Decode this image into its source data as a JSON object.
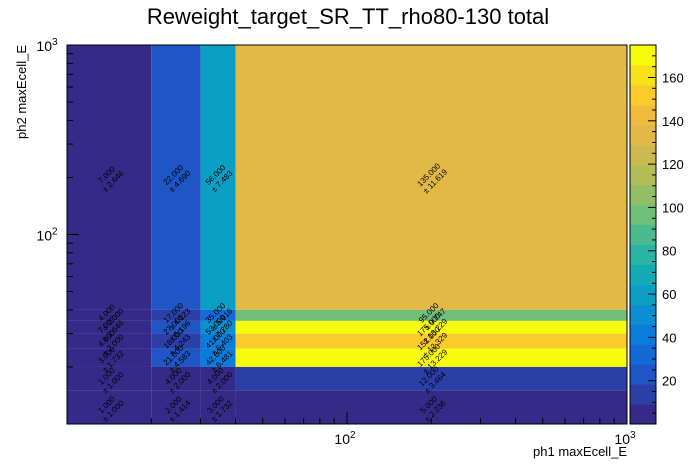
{
  "chart_data": {
    "type": "heatmap",
    "title": "Reweight_target_SR_TT_rho80-130 total",
    "xlabel": "ph1 maxEcell_E",
    "ylabel": "ph2 maxEcell_E",
    "x_scale": "log",
    "y_scale": "log",
    "xlim": [
      10,
      1000
    ],
    "ylim": [
      10,
      1000
    ],
    "x_edges": [
      10,
      20,
      30,
      40,
      1000
    ],
    "y_edges": [
      10,
      15,
      20,
      25,
      30,
      35,
      40,
      1000
    ],
    "x_tick_labels": [
      "10^2",
      "10^3"
    ],
    "y_tick_labels": [
      "10^2",
      "10^3"
    ],
    "z_range": [
      0,
      175
    ],
    "colorbar_ticks": [
      20,
      40,
      60,
      80,
      100,
      120,
      140,
      160
    ],
    "cells": [
      {
        "ix": 0,
        "iy": 6,
        "value": "7.000",
        "error": "± 2.646"
      },
      {
        "ix": 1,
        "iy": 6,
        "value": "22.000",
        "error": "± 4.690"
      },
      {
        "ix": 2,
        "iy": 6,
        "value": "56.000",
        "error": "± 7.483"
      },
      {
        "ix": 3,
        "iy": 6,
        "value": "135.000",
        "error": "± 11.619"
      },
      {
        "ix": 0,
        "iy": 5,
        "value": "4.000",
        "error": "± 2.000"
      },
      {
        "ix": 1,
        "iy": 5,
        "value": "17.000",
        "error": "± 4.123"
      },
      {
        "ix": 2,
        "iy": 5,
        "value": "35.000",
        "error": "± 5.916"
      },
      {
        "ix": 3,
        "iy": 5,
        "value": "95.000",
        "error": "± 9.747"
      },
      {
        "ix": 0,
        "iy": 4,
        "value": "7.000",
        "error": "± 2.646"
      },
      {
        "ix": 1,
        "iy": 4,
        "value": "27.000",
        "error": "± 5.196"
      },
      {
        "ix": 2,
        "iy": 4,
        "value": "53.000",
        "error": "± 7.280"
      },
      {
        "ix": 3,
        "iy": 4,
        "value": "175.000",
        "error": "± 13.229"
      },
      {
        "ix": 0,
        "iy": 3,
        "value": "4.000",
        "error": "± 2.000"
      },
      {
        "ix": 1,
        "iy": 3,
        "value": "18.000",
        "error": "± 4.243"
      },
      {
        "ix": 2,
        "iy": 3,
        "value": "41.000",
        "error": "± 6.403"
      },
      {
        "ix": 3,
        "iy": 3,
        "value": "152.000",
        "error": "± 12.329"
      },
      {
        "ix": 0,
        "iy": 2,
        "value": "3.000",
        "error": "± 1.732"
      },
      {
        "ix": 1,
        "iy": 2,
        "value": "21.000",
        "error": "± 4.583"
      },
      {
        "ix": 2,
        "iy": 2,
        "value": "42.000",
        "error": "± 6.481"
      },
      {
        "ix": 3,
        "iy": 2,
        "value": "175.000",
        "error": "± 13.229"
      },
      {
        "ix": 0,
        "iy": 1,
        "value": "1.000",
        "error": "± 1.000"
      },
      {
        "ix": 1,
        "iy": 1,
        "value": "4.000",
        "error": "± 2.000"
      },
      {
        "ix": 2,
        "iy": 1,
        "value": "4.000",
        "error": "± 2.000"
      },
      {
        "ix": 3,
        "iy": 1,
        "value": "12.000",
        "error": "± 3.464"
      },
      {
        "ix": 0,
        "iy": 0,
        "value": "1.000",
        "error": "± 1.000"
      },
      {
        "ix": 1,
        "iy": 0,
        "value": "2.000",
        "error": "± 1.414"
      },
      {
        "ix": 2,
        "iy": 0,
        "value": "3.000",
        "error": "± 1.732"
      },
      {
        "ix": 3,
        "iy": 0,
        "value": "5.000",
        "error": "± 2.236"
      }
    ]
  }
}
